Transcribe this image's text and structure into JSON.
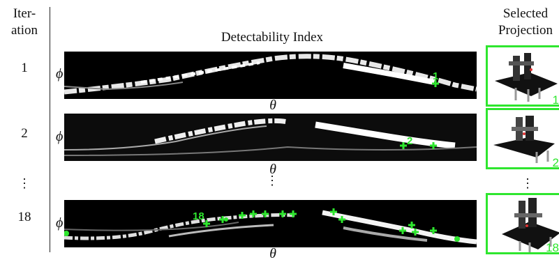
{
  "headers": {
    "iteration_line1": "Iter-",
    "iteration_line2": "ation",
    "detectability": "Detectability Index",
    "selected_line1": "Selected",
    "selected_line2": "Projection"
  },
  "axis_symbols": {
    "phi": "ϕ",
    "theta": "θ"
  },
  "ellipsis": "⋮",
  "rows": [
    {
      "iteration": "1",
      "marker_label": "1",
      "projection_number": "1"
    },
    {
      "iteration": "2",
      "marker_label": "2",
      "projection_number": "2"
    },
    {
      "iteration": "18",
      "marker_label": "18",
      "projection_number": "18"
    }
  ],
  "colors": {
    "marker": "#2ee62e",
    "frame": "#2ee62e",
    "background": "#000000"
  }
}
